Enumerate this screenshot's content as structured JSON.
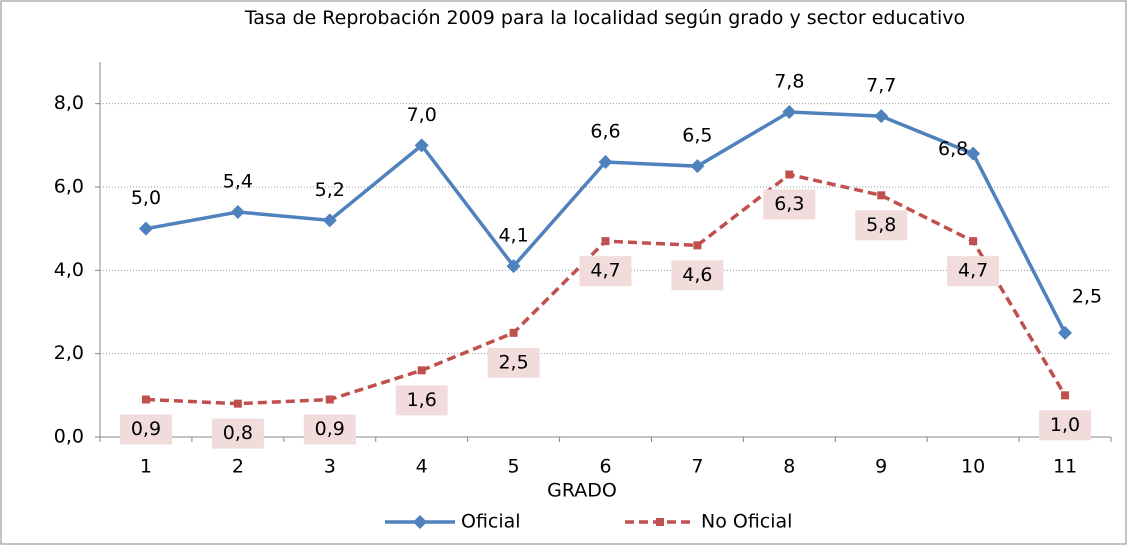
{
  "chart_data": {
    "type": "line",
    "title": "Tasa de Reprobación 2009 para la localidad según grado y sector educativo",
    "x_label": "GRADO",
    "categories": [
      "1",
      "2",
      "3",
      "4",
      "5",
      "6",
      "7",
      "8",
      "9",
      "10",
      "11"
    ],
    "series": [
      {
        "name": "Oficial",
        "color": "#4f81bd",
        "marker": "diamond",
        "values": [
          5.0,
          5.4,
          5.2,
          7.0,
          4.1,
          6.6,
          6.5,
          7.8,
          7.7,
          6.8,
          2.5
        ],
        "value_labels": [
          "5,0",
          "5,4",
          "5,2",
          "7,0",
          "4,1",
          "6,6",
          "6,5",
          "7,8",
          "7,7",
          "6,8",
          "2,5"
        ]
      },
      {
        "name": "No Oficial",
        "color": "#c0504d",
        "marker": "square",
        "dashed": true,
        "values": [
          0.9,
          0.8,
          0.9,
          1.6,
          2.5,
          4.7,
          4.6,
          6.3,
          5.8,
          4.7,
          1.0
        ],
        "value_labels": [
          "0,9",
          "0,8",
          "0,9",
          "1,6",
          "2,5",
          "4,7",
          "4,6",
          "6,3",
          "5,8",
          "4,7",
          "1,0"
        ]
      }
    ],
    "ylim": [
      0,
      9
    ],
    "yticks": [
      {
        "value": 0,
        "label": "0,0"
      },
      {
        "value": 2,
        "label": "2,0"
      },
      {
        "value": 4,
        "label": "4,0"
      },
      {
        "value": 6,
        "label": "6,0"
      },
      {
        "value": 8,
        "label": "8,0"
      }
    ],
    "grid": true,
    "legend": "bottom"
  }
}
